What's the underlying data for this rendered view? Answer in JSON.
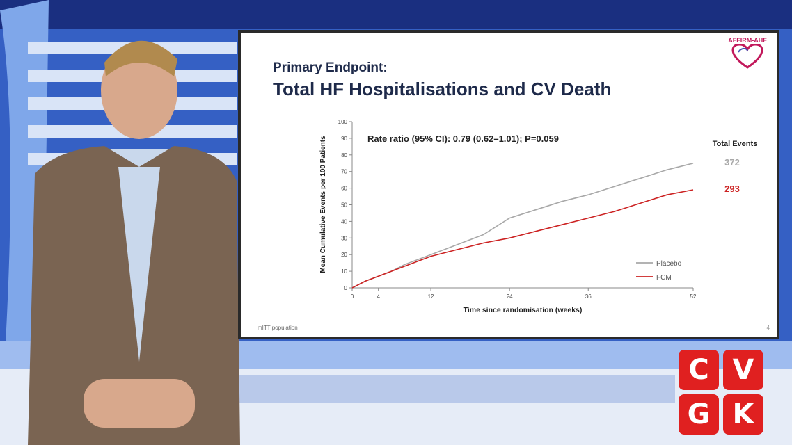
{
  "slide": {
    "subtitle": "Primary Endpoint:",
    "title": "Total HF Hospitalisations and CV Death",
    "brand": "AFFIRM-AHF",
    "footnote": "mITT population",
    "page": "4"
  },
  "logo": {
    "letters": [
      "C",
      "V",
      "G",
      "K"
    ],
    "color": "#e02020"
  },
  "chart_data": {
    "type": "line",
    "annotation": "Rate ratio (95% CI): 0.79 (0.62–1.01); P=0.059",
    "xlabel": "Time since randomisation (weeks)",
    "ylabel": "Mean Cumulative Events per 100 Patients",
    "xlim": [
      0,
      52
    ],
    "ylim": [
      0,
      100
    ],
    "xticks": [
      0,
      4,
      12,
      24,
      36,
      52
    ],
    "yticks": [
      0,
      10,
      20,
      30,
      40,
      50,
      60,
      70,
      80,
      90,
      100
    ],
    "total_events_label": "Total Events",
    "series": [
      {
        "name": "Placebo",
        "color": "#a8a8a8",
        "total_events": "372",
        "x": [
          0,
          2,
          4,
          6,
          8,
          10,
          12,
          16,
          20,
          24,
          28,
          32,
          36,
          40,
          44,
          48,
          52
        ],
        "y": [
          0,
          4,
          7,
          10,
          14,
          17,
          20,
          26,
          32,
          42,
          47,
          52,
          56,
          61,
          66,
          71,
          75
        ]
      },
      {
        "name": "FCM",
        "color": "#cc2222",
        "total_events": "293",
        "x": [
          0,
          2,
          4,
          6,
          8,
          10,
          12,
          16,
          20,
          24,
          28,
          32,
          36,
          40,
          44,
          48,
          52
        ],
        "y": [
          0,
          4,
          7,
          10,
          13,
          16,
          19,
          23,
          27,
          30,
          34,
          38,
          42,
          46,
          51,
          56,
          59
        ]
      }
    ]
  }
}
